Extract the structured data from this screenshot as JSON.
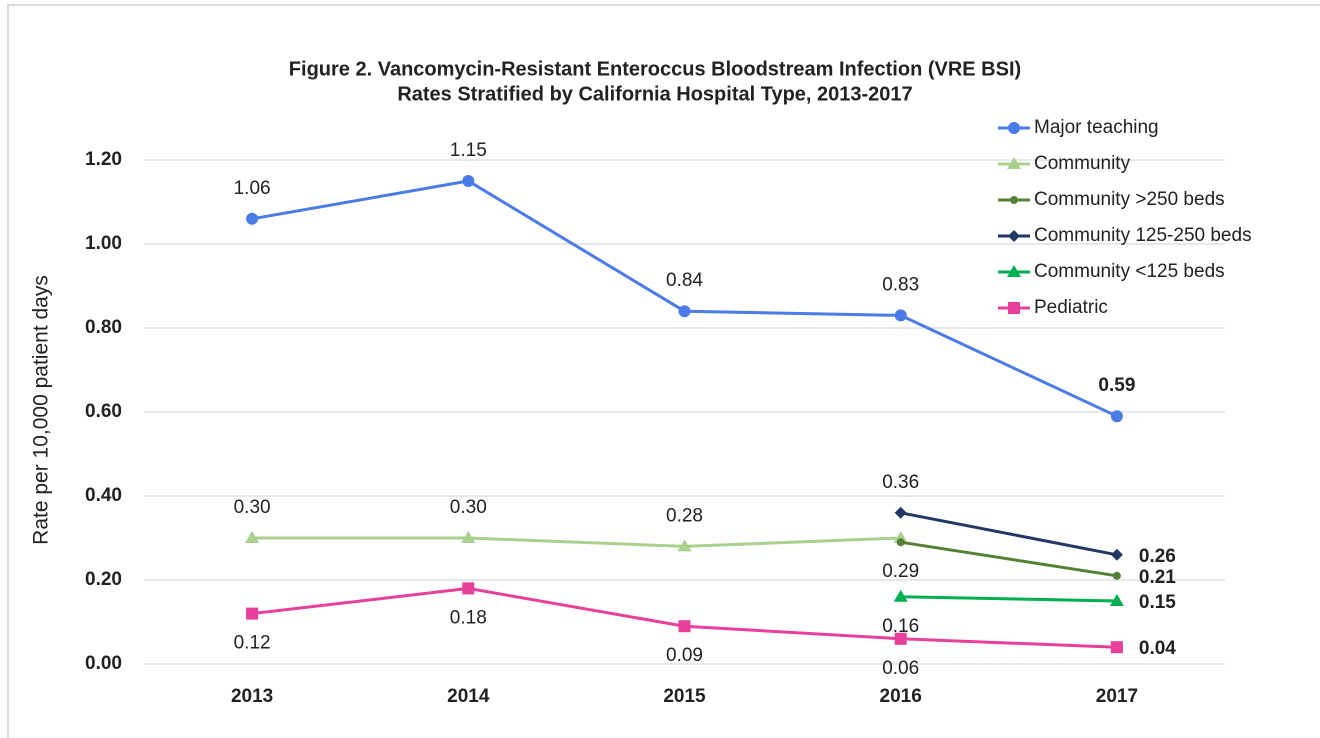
{
  "chart_data": {
    "type": "line",
    "title": [
      "Figure 2. Vancomycin-Resistant Enteroccus Bloodstream Infection (VRE BSI)",
      "Rates Stratified by California Hospital Type,  2013-2017"
    ],
    "y_label": "Rate per 10,000 patient days",
    "categories": [
      "2013",
      "2014",
      "2015",
      "2016",
      "2017"
    ],
    "series": [
      {
        "name": "Major teaching",
        "color": "#4a7be6",
        "marker": "circle",
        "values": [
          1.06,
          1.15,
          0.84,
          0.83,
          0.59
        ],
        "value_labels": [
          "1.06",
          "1.15",
          "0.84",
          "0.83",
          "0.59"
        ]
      },
      {
        "name": "Community",
        "color": "#a9d18e",
        "marker": "triangle",
        "values": [
          0.3,
          0.3,
          0.28,
          0.3,
          null
        ],
        "value_labels": [
          "0.30",
          "0.30",
          "0.28",
          null,
          null
        ]
      },
      {
        "name": "Community >250 beds",
        "color": "#548235",
        "marker": "dot",
        "values": [
          null,
          null,
          null,
          0.29,
          0.21
        ],
        "value_labels": [
          null,
          null,
          null,
          "0.29",
          "0.21"
        ]
      },
      {
        "name": "Community 125-250 beds",
        "color": "#203864",
        "marker": "diamond",
        "values": [
          null,
          null,
          null,
          0.36,
          0.26
        ],
        "value_labels": [
          null,
          null,
          null,
          "0.36",
          "0.26"
        ]
      },
      {
        "name": "Community <125 beds",
        "color": "#00b050",
        "marker": "triangle",
        "values": [
          null,
          null,
          null,
          0.16,
          0.15
        ],
        "value_labels": [
          null,
          null,
          null,
          "0.16",
          "0.15"
        ]
      },
      {
        "name": "Pediatric",
        "color": "#e8409a",
        "marker": "square",
        "values": [
          0.12,
          0.18,
          0.09,
          0.06,
          0.04
        ],
        "value_labels": [
          "0.12",
          "0.18",
          "0.09",
          "0.06",
          "0.04"
        ]
      }
    ],
    "ylim": [
      0,
      1.2
    ],
    "yticks": [
      {
        "value": 0,
        "label": "0.00"
      },
      {
        "value": 0.2,
        "label": "0.20"
      },
      {
        "value": 0.4,
        "label": "0.40"
      },
      {
        "value": 0.6,
        "label": "0.60"
      },
      {
        "value": 0.8,
        "label": "0.80"
      },
      {
        "value": 1.0,
        "label": "1.00"
      },
      {
        "value": 1.2,
        "label": "1.20"
      }
    ],
    "grid": true,
    "legend": "top-right"
  }
}
